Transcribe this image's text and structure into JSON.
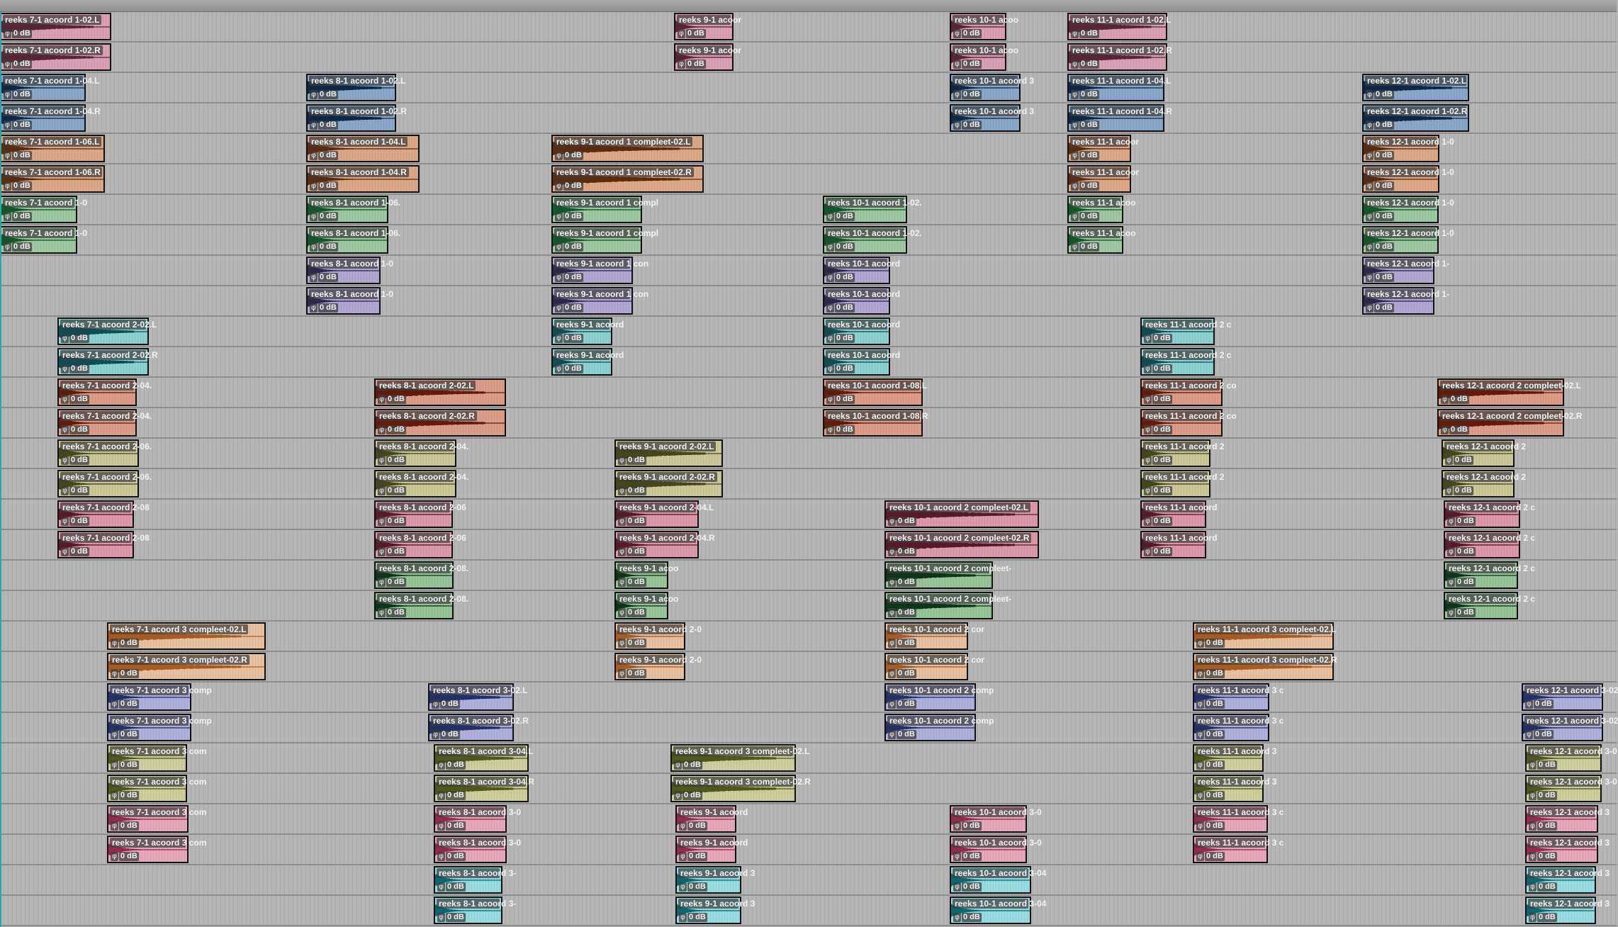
{
  "gain_label": "0 dB",
  "pairs": [
    {
      "color": "#d9a0b6",
      "wave": "#5a2438",
      "clips": [
        {
          "l": "reeks 7-1 acoord 1-02.L",
          "r": "reeks 7-1 acoord 1-02.R"
        },
        {
          "l": "reeks 9-1 acoor",
          "r": "reeks 9-1 acoor"
        },
        {
          "l": "reeks 10-1 acoo",
          "r": "reeks 10-1 acoo"
        },
        {
          "l": "reeks 11-1 acoord 1-02.L",
          "r": "reeks 11-1 acoord 1-02.R"
        }
      ]
    },
    {
      "color": "#8aa8c8",
      "wave": "#0c2846",
      "clips": [
        {
          "l": "reeks 7-1 acoord 1-04.L",
          "r": "reeks 7-1 acoord 1-04.R"
        },
        {
          "l": "reeks 8-1 acoord 1-02.L",
          "r": "reeks 8-1 acoord 1-02.R"
        },
        {
          "l": "reeks 10-1 acoord 3",
          "r": "reeks 10-1 acoord 3"
        },
        {
          "l": "reeks 11-1 acoord 1-04.L",
          "r": "reeks 11-1 acoord 1-04.R"
        },
        {
          "l": "reeks 12-1 acoord 1-02.L",
          "r": "reeks 12-1 acoord 1-02.R"
        }
      ]
    },
    {
      "color": "#dba888",
      "wave": "#5c2a0c",
      "clips": [
        {
          "l": "reeks 7-1 acoord 1-06.L",
          "r": "reeks 7-1 acoord 1-06.R"
        },
        {
          "l": "reeks 8-1 acoord 1-04.L",
          "r": "reeks 8-1 acoord 1-04.R"
        },
        {
          "l": "reeks 9-1 acoord 1 compleet-02.L",
          "r": "reeks 9-1 acoord 1 compleet-02.R"
        },
        {
          "l": "reeks 11-1 acoor",
          "r": "reeks 11-1 acoor"
        },
        {
          "l": "reeks 12-1 acoord 1-0",
          "r": "reeks 12-1 acoord 1-0"
        }
      ]
    },
    {
      "color": "#9ec9a2",
      "wave": "#0c5a2a",
      "clips": [
        {
          "l": "reeks 7-1 acoord 1-0",
          "r": "reeks 7-1 acoord 1-0"
        },
        {
          "l": "reeks 8-1 acoord 1-06.",
          "r": "reeks 8-1 acoord 1-06."
        },
        {
          "l": "reeks 9-1 acoord 1 compl",
          "r": "reeks 9-1 acoord 1 compl"
        },
        {
          "l": "reeks 10-1 acoord 1-02.",
          "r": "reeks 10-1 acoord 1-02."
        },
        {
          "l": "reeks 11-1 acoo",
          "r": "reeks 11-1 acoo"
        },
        {
          "l": "reeks 12-1 acoord 1-0",
          "r": "reeks 12-1 acoord 1-0"
        }
      ]
    },
    {
      "color": "#b2a8d2",
      "wave": "#2c284c",
      "clips": [
        {
          "l": "reeks 8-1 acoord 1-0",
          "r": "reeks 8-1 acoord 1-0"
        },
        {
          "l": "reeks 9-1 acoord 1 con",
          "r": "reeks 9-1 acoord 1 con"
        },
        {
          "l": "reeks 10-1 acoord",
          "r": "reeks 10-1 acoord"
        },
        {
          "l": "reeks 12-1 acoord 1-",
          "r": "reeks 12-1 acoord 1-"
        }
      ]
    },
    {
      "color": "#8ed2d2",
      "wave": "#0c4e56",
      "clips": [
        {
          "l": "reeks 7-1 acoord 2-02.L",
          "r": "reeks 7-1 acoord 2-02.R"
        },
        {
          "l": "reeks 9-1 acoord",
          "r": "reeks 9-1 acoord"
        },
        {
          "l": "reeks 10-1 acoord",
          "r": "reeks 10-1 acoord"
        },
        {
          "l": "reeks 11-1 acoord 2 c",
          "r": "reeks 11-1 acoord 2 c"
        }
      ]
    },
    {
      "color": "#dc9e88",
      "wave": "#641a0a",
      "clips": [
        {
          "l": "reeks 7-1 acoord 2-04.",
          "r": "reeks 7-1 acoord 2-04."
        },
        {
          "l": "reeks 8-1 acoord 2-02.L",
          "r": "reeks 8-1 acoord 2-02.R"
        },
        {
          "l": "reeks 10-1 acoord 1-08.L",
          "r": "reeks 10-1 acoord 1-08.R"
        },
        {
          "l": "reeks 11-1 acoord 2 co",
          "r": "reeks 11-1 acoord 2 co"
        },
        {
          "l": "reeks 12-1 acoord 2 compleet-02.L",
          "r": "reeks 12-1 acoord 2 compleet-02.R"
        }
      ]
    },
    {
      "color": "#ccc89a",
      "wave": "#46461a",
      "clips": [
        {
          "l": "reeks 7-1 acoord 2-06.",
          "r": "reeks 7-1 acoord 2-06."
        },
        {
          "l": "reeks 8-1 acoord 2-04.",
          "r": "reeks 8-1 acoord 2-04."
        },
        {
          "l": "reeks 9-1 acoord 2-02.L",
          "r": "reeks 9-1 acoord 2-02.R"
        },
        {
          "l": "reeks 11-1 acoord 2",
          "r": "reeks 11-1 acoord 2"
        },
        {
          "l": "reeks 12-1 acoord 2",
          "r": "reeks 12-1 acoord 2"
        }
      ]
    },
    {
      "color": "#dc9aaa",
      "wave": "#561a2a",
      "clips": [
        {
          "l": "reeks 7-1 acoord 2-08",
          "r": "reeks 7-1 acoord 2-08"
        },
        {
          "l": "reeks 8-1 acoord 2-06",
          "r": "reeks 8-1 acoord 2-06"
        },
        {
          "l": "reeks 9-1 acoord 2-04.L",
          "r": "reeks 9-1 acoord 2-04.R"
        },
        {
          "l": "reeks 10-1 acoord 2 compleet-02.L",
          "r": "reeks 10-1 acoord 2 compleet-02.R"
        },
        {
          "l": "reeks 11-1 acoord",
          "r": "reeks 11-1 acoord"
        },
        {
          "l": "reeks 12-1 acoord 2 c",
          "r": "reeks 12-1 acoord 2 c"
        }
      ]
    },
    {
      "color": "#98c49a",
      "wave": "#0c361a",
      "clips": [
        {
          "l": "reeks 8-1 acoord 2-08.",
          "r": "reeks 8-1 acoord 2-08."
        },
        {
          "l": "reeks 9-1 acoo",
          "r": "reeks 9-1 acoo"
        },
        {
          "l": "reeks 10-1 acoord 2 compleet-",
          "r": "reeks 10-1 acoord 2 compleet-"
        },
        {
          "l": "reeks 12-1 acoord 2 c",
          "r": "reeks 12-1 acoord 2 c"
        }
      ]
    },
    {
      "color": "#e8c2a2",
      "wave": "#aa5a1c",
      "clips": [
        {
          "l": "reeks 7-1 acoord 3 compleet-02.L",
          "r": "reeks 7-1 acoord 3 compleet-02.R"
        },
        {
          "l": "reeks 9-1 acoord 2-0",
          "r": "reeks 9-1 acoord 2-0"
        },
        {
          "l": "reeks 10-1 acoord 2 cor",
          "r": "reeks 10-1 acoord 2 cor"
        },
        {
          "l": "reeks 11-1 acoord 3 compleet-02.L",
          "r": "reeks 11-1 acoord 3 compleet-02.R"
        }
      ]
    },
    {
      "color": "#b0b0dc",
      "wave": "#22306a",
      "clips": [
        {
          "l": "reeks 7-1 acoord 3 comp",
          "r": "reeks 7-1 acoord 3 comp"
        },
        {
          "l": "reeks 8-1 acoord 3-02.L",
          "r": "reeks 8-1 acoord 3-02.R"
        },
        {
          "l": "reeks 10-1 acoord 2 comp",
          "r": "reeks 10-1 acoord 2 comp"
        },
        {
          "l": "reeks 11-1 acoord 3 c",
          "r": "reeks 11-1 acoord 3 c"
        },
        {
          "l": "reeks 12-1 acoord 3-02",
          "r": "reeks 12-1 acoord 3-02"
        }
      ]
    },
    {
      "color": "#cdcd9e",
      "wave": "#4e581a",
      "clips": [
        {
          "l": "reeks 7-1 acoord 3 com",
          "r": "reeks 7-1 acoord 3 com"
        },
        {
          "l": "reeks 8-1 acoord 3-04.L",
          "r": "reeks 8-1 acoord 3-04.R"
        },
        {
          "l": "reeks 9-1 acoord 3 compleet-02.L",
          "r": "reeks 9-1 acoord 3 compleet-02.R"
        },
        {
          "l": "reeks 11-1 acoord 3",
          "r": "reeks 11-1 acoord 3"
        },
        {
          "l": "reeks 12-1 acoord 3-0",
          "r": "reeks 12-1 acoord 3-0"
        }
      ]
    },
    {
      "color": "#e8a8bc",
      "wave": "#962a4a",
      "clips": [
        {
          "l": "reeks 7-1 acoord 3 com",
          "r": "reeks 7-1 acoord 3 com"
        },
        {
          "l": "reeks 8-1 acoord 3-0",
          "r": "reeks 8-1 acoord 3-0"
        },
        {
          "l": "reeks 9-1 acoord",
          "r": "reeks 9-1 acoord"
        },
        {
          "l": "reeks 10-1 acoord 3-0",
          "r": "reeks 10-1 acoord 3-0"
        },
        {
          "l": "reeks 11-1 acoord 3 c",
          "r": "reeks 11-1 acoord 3 c"
        },
        {
          "l": "reeks 12-1 acoord 3",
          "r": "reeks 12-1 acoord 3"
        }
      ]
    },
    {
      "color": "#98dce0",
      "wave": "#0a6870",
      "clips": [
        {
          "l": "reeks 8-1 acoord 3-",
          "r": "reeks 8-1 acoord 3-"
        },
        {
          "l": "reeks 9-1 acoord 3",
          "r": "reeks 9-1 acoord 3"
        },
        {
          "l": "reeks 10-1 acoord 3-04",
          "r": "reeks 10-1 acoord 3-04"
        },
        {
          "l": "reeks 12-1 acoord 3",
          "r": "reeks 12-1 acoord 3"
        }
      ]
    }
  ]
}
